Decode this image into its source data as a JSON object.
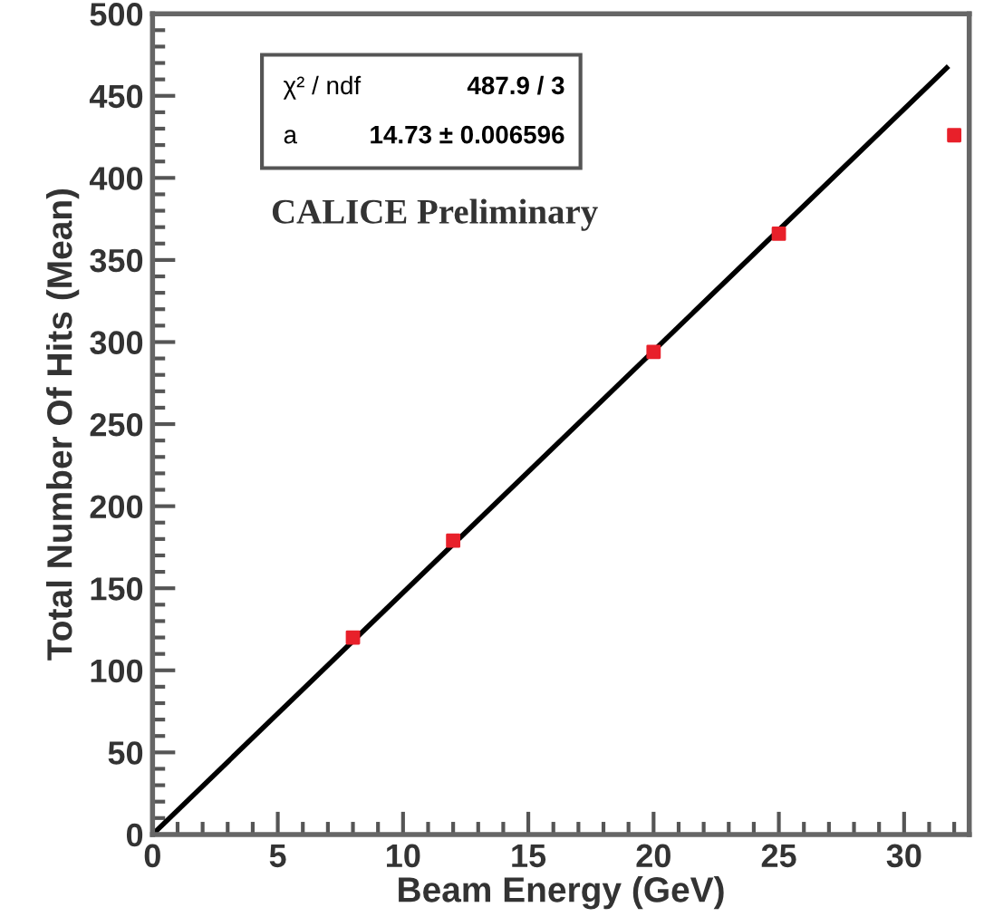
{
  "chart_data": {
    "type": "scatter",
    "xlabel": "Beam Energy (GeV)",
    "ylabel": "Total Number Of Hits (Mean)",
    "xlim": [
      0,
      32.6
    ],
    "ylim": [
      0,
      500
    ],
    "xticks": [
      0,
      5,
      10,
      15,
      20,
      25,
      30
    ],
    "yticks": [
      0,
      50,
      100,
      150,
      200,
      250,
      300,
      350,
      400,
      450,
      500
    ],
    "grid": false,
    "series": [
      {
        "type": "line",
        "marker": "none",
        "color": "#000000",
        "x": [
          0,
          31.7
        ],
        "values": [
          0,
          467
        ]
      },
      {
        "marker": "square",
        "color": "#e8202a",
        "x": [
          8,
          12,
          20,
          25,
          32
        ],
        "values": [
          120,
          179,
          294,
          366,
          426
        ]
      }
    ],
    "annotations": [
      "χ² / ndf",
      "487.9 / 3",
      "a",
      "14.73 ± 0.006596",
      "CALICE Preliminary"
    ]
  }
}
